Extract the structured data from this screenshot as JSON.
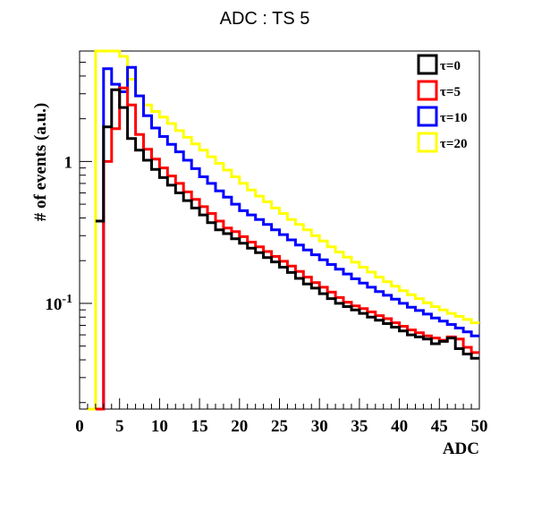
{
  "chart_data": {
    "type": "line",
    "title": "ADC : TS 5",
    "xlabel": "ADC",
    "ylabel": "# of events (a.u.)",
    "xlim": [
      0,
      50
    ],
    "ylim": [
      0.018,
      6.0
    ],
    "yscale": "log",
    "xticks": [
      "0",
      "5",
      "10",
      "15",
      "20",
      "25",
      "30",
      "35",
      "40",
      "45",
      "50"
    ],
    "yticks": [
      {
        "value": 1,
        "base": "1",
        "exp": ""
      },
      {
        "value": 0.1,
        "base": "10",
        "exp": "-1"
      }
    ],
    "bin_width": 1,
    "legend": {
      "placement": "top-right"
    },
    "series": [
      {
        "name": "τ=0",
        "color": "#000000",
        "bin_edges_start": 2,
        "values": [
          0.38,
          1.75,
          3.2,
          2.4,
          1.45,
          1.2,
          1.02,
          0.88,
          0.77,
          0.68,
          0.6,
          0.53,
          0.47,
          0.42,
          0.37,
          0.33,
          0.31,
          0.285,
          0.265,
          0.245,
          0.228,
          0.21,
          0.196,
          0.18,
          0.165,
          0.15,
          0.137,
          0.128,
          0.117,
          0.108,
          0.1,
          0.095,
          0.09,
          0.085,
          0.08,
          0.076,
          0.072,
          0.068,
          0.064,
          0.06,
          0.058,
          0.056,
          0.052,
          0.054,
          0.057,
          0.048,
          0.044,
          0.041,
          0.038
        ]
      },
      {
        "name": "τ=5",
        "color": "#ff0000",
        "bin_edges_start": 2,
        "values": [
          0.018,
          1.0,
          1.7,
          3.3,
          2.5,
          1.55,
          1.22,
          1.04,
          0.9,
          0.79,
          0.7,
          0.61,
          0.54,
          0.48,
          0.43,
          0.38,
          0.34,
          0.32,
          0.295,
          0.27,
          0.25,
          0.232,
          0.214,
          0.198,
          0.183,
          0.168,
          0.153,
          0.14,
          0.13,
          0.12,
          0.11,
          0.102,
          0.096,
          0.092,
          0.087,
          0.082,
          0.078,
          0.073,
          0.069,
          0.065,
          0.062,
          0.059,
          0.057,
          0.055,
          0.058,
          0.056,
          0.049,
          0.045,
          0.039
        ]
      },
      {
        "name": "τ=10",
        "color": "#0000ff",
        "bin_edges_start": 2,
        "values": [
          0.018,
          4.5,
          3.5,
          3.1,
          4.6,
          2.9,
          2.1,
          1.72,
          1.5,
          1.32,
          1.17,
          1.02,
          0.89,
          0.78,
          0.7,
          0.62,
          0.56,
          0.5,
          0.45,
          0.42,
          0.39,
          0.36,
          0.33,
          0.305,
          0.28,
          0.258,
          0.238,
          0.22,
          0.203,
          0.188,
          0.174,
          0.161,
          0.149,
          0.139,
          0.13,
          0.121,
          0.114,
          0.107,
          0.1,
          0.094,
          0.089,
          0.084,
          0.079,
          0.075,
          0.071,
          0.067,
          0.063,
          0.059,
          0.049,
          0.044
        ]
      },
      {
        "name": "τ=20",
        "color": "#ffff00",
        "bin_edges_start": 1,
        "values": [
          0.018,
          6.0,
          6.0,
          6.0,
          5.5,
          3.8,
          2.9,
          2.5,
          2.25,
          2.05,
          1.85,
          1.65,
          1.48,
          1.33,
          1.2,
          1.08,
          0.97,
          0.87,
          0.78,
          0.7,
          0.63,
          0.57,
          0.52,
          0.47,
          0.43,
          0.39,
          0.36,
          0.33,
          0.3,
          0.275,
          0.25,
          0.23,
          0.212,
          0.195,
          0.18,
          0.166,
          0.153,
          0.142,
          0.132,
          0.123,
          0.115,
          0.108,
          0.101,
          0.095,
          0.09,
          0.085,
          0.081,
          0.077,
          0.073,
          0.069
        ]
      }
    ]
  }
}
